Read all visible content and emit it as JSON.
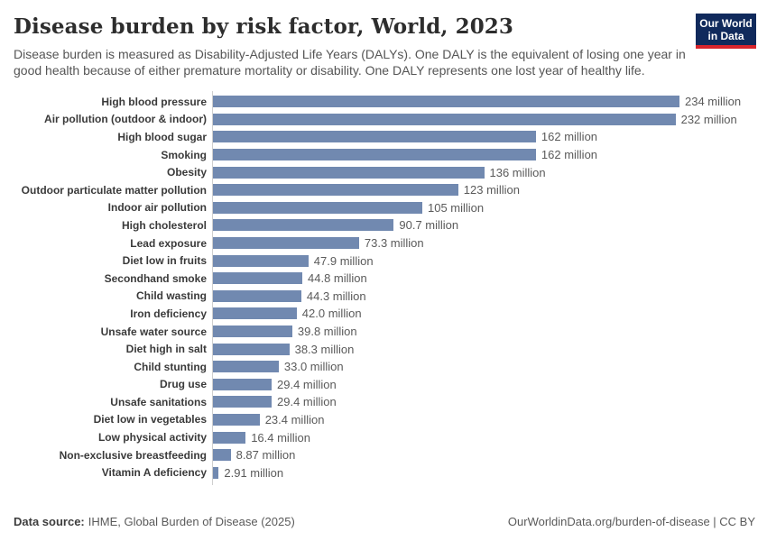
{
  "header": {
    "title": "Disease burden by risk factor, World, 2023",
    "subtitle": "Disease burden is measured as Disability-Adjusted Life Years (DALYs). One DALY is the equivalent of losing one year in good health because of either premature mortality or disability. One DALY represents one lost year of healthy life.",
    "logo": {
      "line1": "Our World",
      "line2": "in Data"
    }
  },
  "chart_data": {
    "type": "bar",
    "orientation": "horizontal",
    "title": "Disease burden by risk factor, World, 2023",
    "unit": "DALYs",
    "xlim": [
      0,
      234
    ],
    "grid": false,
    "categories": [
      "High blood pressure",
      "Air pollution (outdoor & indoor)",
      "High blood sugar",
      "Smoking",
      "Obesity",
      "Outdoor particulate matter pollution",
      "Indoor air pollution",
      "High cholesterol",
      "Lead exposure",
      "Diet low in fruits",
      "Secondhand smoke",
      "Child wasting",
      "Iron deficiency",
      "Unsafe water source",
      "Diet high in salt",
      "Child stunting",
      "Drug use",
      "Unsafe sanitations",
      "Diet low in vegetables",
      "Low physical activity",
      "Non-exclusive breastfeeding",
      "Vitamin A deficiency"
    ],
    "values": [
      234,
      232,
      162,
      162,
      136,
      123,
      105,
      90.7,
      73.3,
      47.9,
      44.8,
      44.3,
      42.0,
      39.8,
      38.3,
      33.0,
      29.4,
      29.4,
      23.4,
      16.4,
      8.87,
      2.91
    ],
    "value_labels": [
      "234 million",
      "232 million",
      "162 million",
      "162 million",
      "136 million",
      "123 million",
      "105 million",
      "90.7 million",
      "73.3 million",
      "47.9 million",
      "44.8 million",
      "44.3 million",
      "42.0 million",
      "39.8 million",
      "38.3 million",
      "33.0 million",
      "29.4 million",
      "29.4 million",
      "23.4 million",
      "16.4 million",
      "8.87 million",
      "2.91 million"
    ]
  },
  "colors": {
    "bar": "#7189b0",
    "axis": "#cfcfcf",
    "category_label": "#3a3a3a",
    "value_label": "#5a5a5a",
    "logo_bg": "#102a5c",
    "logo_stripe": "#d8242c"
  },
  "footer": {
    "data_source_label": "Data source:",
    "data_source_value": "IHME, Global Burden of Disease (2025)",
    "attribution": "OurWorldinData.org/burden-of-disease | CC BY"
  }
}
